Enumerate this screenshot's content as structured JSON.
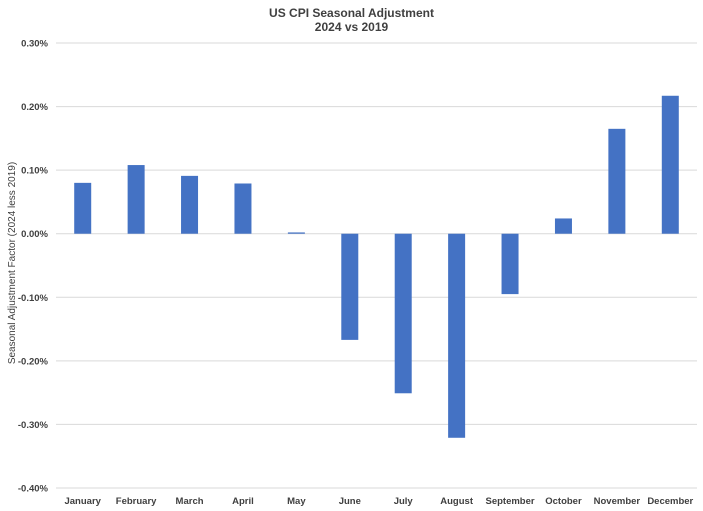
{
  "chart_data": {
    "type": "bar",
    "title": "US CPI Seasonal Adjustment",
    "subtitle": "2024 vs 2019",
    "xlabel": "",
    "ylabel": "Seasonal Adjustment Factor (2024 less 2019)",
    "categories": [
      "January",
      "February",
      "March",
      "April",
      "May",
      "June",
      "July",
      "August",
      "September",
      "October",
      "November",
      "December"
    ],
    "values": [
      0.08,
      0.108,
      0.091,
      0.079,
      0.002,
      -0.167,
      -0.251,
      -0.321,
      -0.095,
      0.024,
      0.165,
      0.217
    ],
    "unit": "%",
    "ylim": [
      -0.4,
      0.3
    ],
    "yticks": [
      0.3,
      0.2,
      0.1,
      0.0,
      -0.1,
      -0.2,
      -0.3,
      -0.4
    ],
    "ytick_labels": [
      "0.30%",
      "0.20%",
      "0.10%",
      "0.00%",
      "-0.10%",
      "-0.20%",
      "-0.30%",
      "-0.40%"
    ],
    "grid": true,
    "legend": "none",
    "colors": {
      "bar": "#4472C4",
      "grid": "#D9D9D9",
      "text": "#404040"
    }
  }
}
